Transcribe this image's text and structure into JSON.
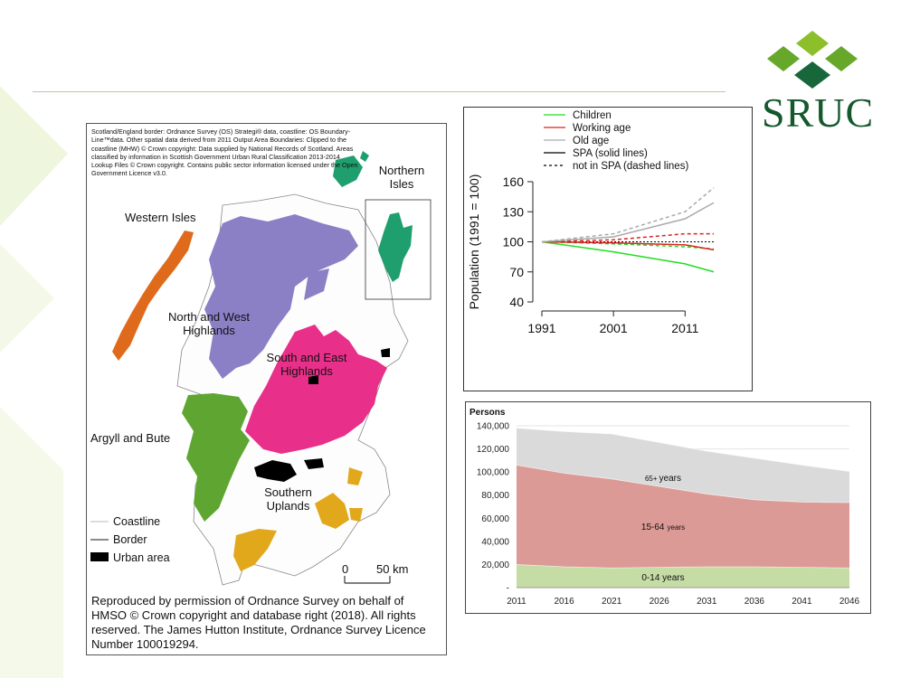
{
  "logo": {
    "text": "SRUC"
  },
  "map": {
    "copyright": "Scotland/England border: Ordnance Survey (OS) Strategi® data, coastline: OS Boundary-Line™data. Other spatial data derived from 2011 Output Area Boundaries: Clipped to the coastline (MHW) © Crown copyright: Data supplied by National Records of Scotland. Areas classified by information in Scottish Government Urban Rural Classification 2013-2014 Lookup Files © Crown copyright. Contains public sector information licensed under the Open Government Licence v3.0.",
    "regions": {
      "western_isles": "Western Isles",
      "northern_isles": "Northern Isles",
      "north_west": "North and West Highlands",
      "south_east": "South and East Highlands",
      "argyll": "Argyll and Bute",
      "southern_uplands": "Southern Uplands"
    },
    "region_colors": {
      "western_isles": "#e06a1b",
      "northern_isles": "#1f9e6e",
      "north_west": "#8b7fc6",
      "south_east": "#e8308a",
      "argyll": "#5ea631",
      "southern_uplands": "#e2a81c"
    },
    "legend": {
      "coastline": "Coastline",
      "border": "Border",
      "urban": "Urban area"
    },
    "scale": {
      "zero": "0",
      "fifty": "50 km"
    },
    "footer": "Reproduced by permission of Ordnance Survey on behalf of HMSO © Crown copyright and database right (2018). All rights reserved. The James Hutton Institute, Ordnance Survey Licence Number 100019294."
  },
  "chart_data": [
    {
      "type": "line",
      "xlabel": "",
      "ylabel": "Population (1991 = 100)",
      "ylim": [
        40,
        160
      ],
      "xlim": [
        1991,
        2015
      ],
      "yticks": [
        40,
        70,
        100,
        130,
        160
      ],
      "xticks": [
        1991,
        2001,
        2011
      ],
      "reference_line": 100,
      "legend_position": "top",
      "legend": [
        "Children",
        "Working age",
        "Old age",
        "SPA (solid lines)",
        "not in SPA (dashed lines)"
      ],
      "series": [
        {
          "name": "Children",
          "group": "SPA",
          "style": "solid",
          "color": "#22dd22",
          "x": [
            1991,
            2001,
            2011,
            2015
          ],
          "y": [
            100,
            90,
            78,
            70
          ]
        },
        {
          "name": "Children",
          "group": "not in SPA",
          "style": "dashed",
          "color": "#22dd22",
          "x": [
            1991,
            2001,
            2011,
            2015
          ],
          "y": [
            100,
            98,
            95,
            93
          ]
        },
        {
          "name": "Working age",
          "group": "SPA",
          "style": "solid",
          "color": "#dd2222",
          "x": [
            1991,
            2001,
            2011,
            2015
          ],
          "y": [
            100,
            99,
            97,
            92
          ]
        },
        {
          "name": "Working age",
          "group": "not in SPA",
          "style": "dashed",
          "color": "#dd2222",
          "x": [
            1991,
            2001,
            2011,
            2015
          ],
          "y": [
            100,
            102,
            108,
            108
          ]
        },
        {
          "name": "Old age",
          "group": "SPA",
          "style": "solid",
          "color": "#aaaaaa",
          "x": [
            1991,
            2001,
            2011,
            2015
          ],
          "y": [
            100,
            105,
            123,
            139
          ]
        },
        {
          "name": "Old age",
          "group": "not in SPA",
          "style": "dashed",
          "color": "#aaaaaa",
          "x": [
            1991,
            2001,
            2011,
            2015
          ],
          "y": [
            100,
            108,
            130,
            154
          ]
        }
      ]
    },
    {
      "type": "area",
      "title": "Persons",
      "ylim": [
        0,
        140000
      ],
      "yticks": [
        "-",
        "20,000",
        "40,000",
        "60,000",
        "80,000",
        "100,000",
        "120,000",
        "140,000"
      ],
      "categories": [
        "2011",
        "2016",
        "2021",
        "2026",
        "2031",
        "2036",
        "2041",
        "2046"
      ],
      "stacked": true,
      "series": [
        {
          "name": "0-14 years",
          "color": "#c5dca5",
          "values": [
            20000,
            18000,
            17000,
            17500,
            18000,
            18000,
            17500,
            17000
          ]
        },
        {
          "name": "15-64 years",
          "color": "#dc9a96",
          "values": [
            86000,
            81000,
            77000,
            70000,
            63000,
            58000,
            56500,
            56500
          ]
        },
        {
          "name": "65+ years",
          "color": "#dadada",
          "values": [
            32000,
            36000,
            39000,
            38000,
            37000,
            36000,
            32000,
            27000
          ]
        }
      ],
      "labels": {
        "a0": "0-14 years",
        "a1": "15-64",
        "a1_suffix": "years",
        "a2": "65+",
        "a2_suffix": "years"
      }
    }
  ]
}
